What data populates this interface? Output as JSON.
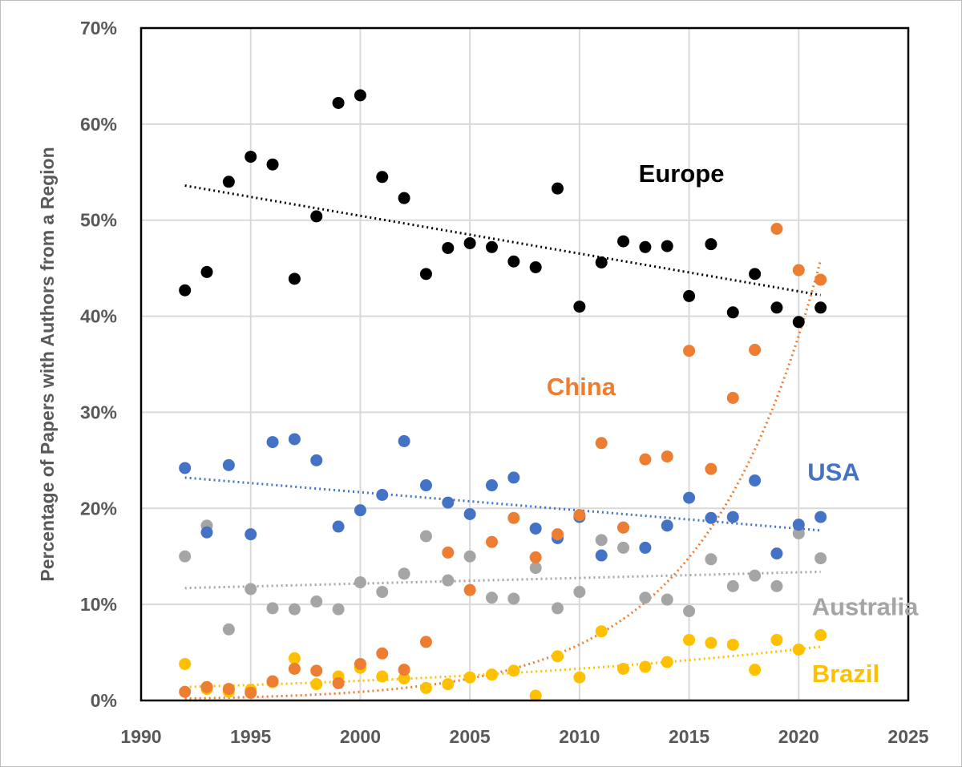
{
  "chart_data": {
    "type": "scatter",
    "title": "",
    "xlabel": "",
    "ylabel": "Percentage of Papers with Authors from a Region",
    "xlim": [
      1990,
      2025
    ],
    "ylim": [
      0,
      70
    ],
    "x_ticks": [
      "1990",
      "1995",
      "2000",
      "2005",
      "2010",
      "2015",
      "2020",
      "2025"
    ],
    "y_ticks": [
      "0%",
      "10%",
      "20%",
      "30%",
      "40%",
      "50%",
      "60%",
      "70%"
    ],
    "grid": true,
    "legend": "inline labels",
    "series": [
      {
        "name": "Europe",
        "color": "#000000",
        "label_position": [
          2012.7,
          54
        ],
        "trendline": {
          "type": "linear",
          "x": [
            1992,
            2021
          ],
          "y": [
            53.6,
            42.2
          ]
        },
        "points": [
          [
            1992,
            42.7
          ],
          [
            1993,
            44.6
          ],
          [
            1994,
            54.0
          ],
          [
            1995,
            56.6
          ],
          [
            1996,
            55.8
          ],
          [
            1997,
            43.9
          ],
          [
            1998,
            50.4
          ],
          [
            1999,
            62.2
          ],
          [
            2000,
            63.0
          ],
          [
            2001,
            54.5
          ],
          [
            2002,
            52.3
          ],
          [
            2003,
            44.4
          ],
          [
            2004,
            47.1
          ],
          [
            2005,
            47.6
          ],
          [
            2006,
            47.2
          ],
          [
            2007,
            45.7
          ],
          [
            2008,
            45.1
          ],
          [
            2009,
            53.3
          ],
          [
            2010,
            41.0
          ],
          [
            2011,
            45.6
          ],
          [
            2012,
            47.8
          ],
          [
            2013,
            47.2
          ],
          [
            2014,
            47.3
          ],
          [
            2015,
            42.1
          ],
          [
            2016,
            47.5
          ],
          [
            2017,
            40.4
          ],
          [
            2018,
            44.4
          ],
          [
            2019,
            40.9
          ],
          [
            2020,
            39.4
          ],
          [
            2021,
            40.9
          ]
        ]
      },
      {
        "name": "China",
        "color": "#ed7d31",
        "label_position": [
          2008.5,
          31.8
        ],
        "trendline": {
          "type": "exponential",
          "x0": 1992,
          "x1": 2021,
          "y0": 0.2,
          "y1": 45.8
        },
        "points": [
          [
            1992,
            0.9
          ],
          [
            1993,
            1.4
          ],
          [
            1994,
            1.2
          ],
          [
            1995,
            0.8
          ],
          [
            1996,
            2.0
          ],
          [
            1997,
            3.3
          ],
          [
            1998,
            3.1
          ],
          [
            1999,
            1.8
          ],
          [
            2000,
            3.8
          ],
          [
            2001,
            4.9
          ],
          [
            2002,
            3.2
          ],
          [
            2003,
            6.1
          ],
          [
            2004,
            15.4
          ],
          [
            2005,
            11.5
          ],
          [
            2006,
            16.5
          ],
          [
            2007,
            19.0
          ],
          [
            2008,
            14.9
          ],
          [
            2009,
            17.3
          ],
          [
            2010,
            19.3
          ],
          [
            2011,
            26.8
          ],
          [
            2012,
            18.0
          ],
          [
            2013,
            25.1
          ],
          [
            2014,
            25.4
          ],
          [
            2015,
            36.4
          ],
          [
            2016,
            24.1
          ],
          [
            2017,
            31.5
          ],
          [
            2018,
            36.5
          ],
          [
            2019,
            49.1
          ],
          [
            2020,
            44.8
          ],
          [
            2021,
            43.8
          ]
        ]
      },
      {
        "name": "USA",
        "color": "#4472c4",
        "label_position": [
          2020.4,
          22.9
        ],
        "trendline": {
          "type": "linear",
          "x": [
            1992,
            2021
          ],
          "y": [
            23.2,
            17.7
          ]
        },
        "points": [
          [
            1992,
            24.2
          ],
          [
            1993,
            17.5
          ],
          [
            1994,
            24.5
          ],
          [
            1995,
            17.3
          ],
          [
            1996,
            26.9
          ],
          [
            1997,
            27.2
          ],
          [
            1998,
            25.0
          ],
          [
            1999,
            18.1
          ],
          [
            2000,
            19.8
          ],
          [
            2001,
            21.4
          ],
          [
            2002,
            27.0
          ],
          [
            2003,
            22.4
          ],
          [
            2004,
            20.6
          ],
          [
            2005,
            19.4
          ],
          [
            2006,
            22.4
          ],
          [
            2007,
            23.2
          ],
          [
            2008,
            17.9
          ],
          [
            2009,
            16.9
          ],
          [
            2010,
            19.1
          ],
          [
            2011,
            15.1
          ],
          [
            2012,
            18.0
          ],
          [
            2013,
            15.9
          ],
          [
            2014,
            18.2
          ],
          [
            2015,
            21.1
          ],
          [
            2016,
            19.0
          ],
          [
            2017,
            19.1
          ],
          [
            2018,
            22.9
          ],
          [
            2019,
            15.3
          ],
          [
            2020,
            18.3
          ],
          [
            2021,
            19.1
          ]
        ]
      },
      {
        "name": "Australia",
        "color": "#a5a5a5",
        "label_position": [
          2020.6,
          8.9
        ],
        "trendline": {
          "type": "linear",
          "x": [
            1992,
            2021
          ],
          "y": [
            11.7,
            13.4
          ]
        },
        "points": [
          [
            1992,
            15.0
          ],
          [
            1993,
            18.2
          ],
          [
            1994,
            7.4
          ],
          [
            1995,
            11.6
          ],
          [
            1996,
            9.6
          ],
          [
            1997,
            9.5
          ],
          [
            1998,
            10.3
          ],
          [
            1999,
            9.5
          ],
          [
            2000,
            12.3
          ],
          [
            2001,
            11.3
          ],
          [
            2002,
            13.2
          ],
          [
            2003,
            17.1
          ],
          [
            2004,
            12.5
          ],
          [
            2005,
            15.0
          ],
          [
            2006,
            10.7
          ],
          [
            2007,
            10.6
          ],
          [
            2008,
            13.8
          ],
          [
            2009,
            9.6
          ],
          [
            2010,
            11.3
          ],
          [
            2011,
            16.7
          ],
          [
            2012,
            15.9
          ],
          [
            2013,
            10.7
          ],
          [
            2014,
            10.5
          ],
          [
            2015,
            9.3
          ],
          [
            2016,
            14.7
          ],
          [
            2017,
            11.9
          ],
          [
            2018,
            13.0
          ],
          [
            2019,
            11.9
          ],
          [
            2020,
            17.4
          ],
          [
            2021,
            14.8
          ]
        ]
      },
      {
        "name": "Brazil",
        "color": "#ffc000",
        "label_position": [
          2020.6,
          1.9
        ],
        "trendline": {
          "type": "exponential",
          "x0": 1992,
          "x1": 2021,
          "y0": 1.4,
          "y1": 5.6
        },
        "points": [
          [
            1992,
            3.8
          ],
          [
            1993,
            1.2
          ],
          [
            1994,
            0.9
          ],
          [
            1995,
            1.1
          ],
          [
            1996,
            1.9
          ],
          [
            1997,
            4.4
          ],
          [
            1998,
            1.7
          ],
          [
            1999,
            2.5
          ],
          [
            2000,
            3.4
          ],
          [
            2001,
            2.5
          ],
          [
            2002,
            2.3
          ],
          [
            2003,
            1.3
          ],
          [
            2004,
            1.7
          ],
          [
            2005,
            2.4
          ],
          [
            2006,
            2.7
          ],
          [
            2007,
            3.1
          ],
          [
            2008,
            0.5
          ],
          [
            2009,
            4.6
          ],
          [
            2010,
            2.4
          ],
          [
            2011,
            7.2
          ],
          [
            2012,
            3.3
          ],
          [
            2013,
            3.5
          ],
          [
            2014,
            4.0
          ],
          [
            2015,
            6.3
          ],
          [
            2016,
            6.0
          ],
          [
            2017,
            5.8
          ],
          [
            2018,
            3.2
          ],
          [
            2019,
            6.3
          ],
          [
            2020,
            5.3
          ],
          [
            2021,
            6.8
          ]
        ]
      }
    ]
  }
}
